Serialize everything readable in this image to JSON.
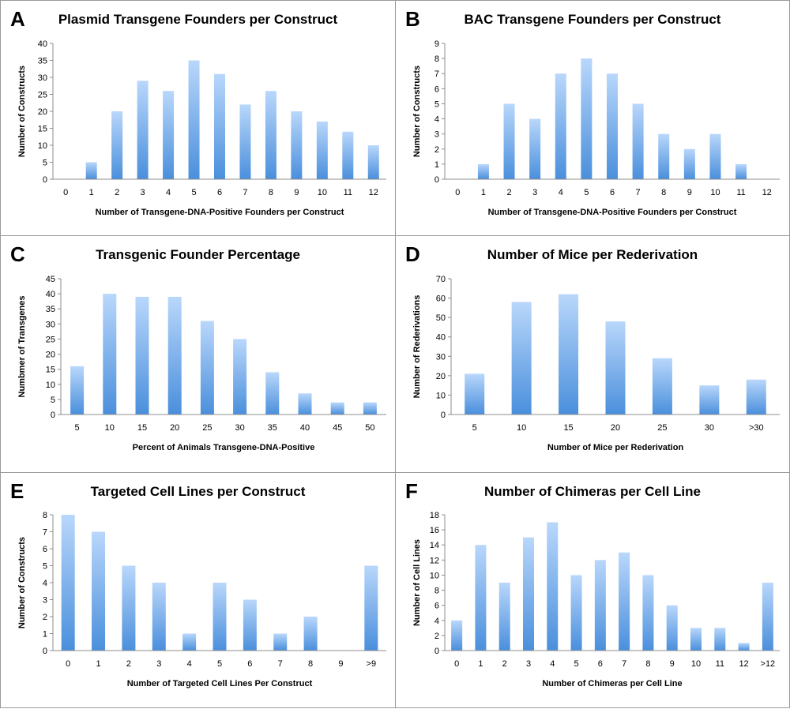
{
  "chart_data": [
    {
      "type": "bar",
      "letter": "A",
      "title": "Plasmid Transgene Founders per Construct",
      "xlabel": "Number of Transgene-DNA-Positive Founders per Construct",
      "ylabel": "Number of Constructs",
      "categories": [
        "0",
        "1",
        "2",
        "3",
        "4",
        "5",
        "6",
        "7",
        "8",
        "9",
        "10",
        "11",
        "12"
      ],
      "values": [
        0,
        5,
        20,
        29,
        26,
        35,
        31,
        22,
        26,
        20,
        17,
        14,
        10
      ],
      "ylim": [
        0,
        40
      ],
      "yticks": [
        0,
        5,
        10,
        15,
        20,
        25,
        30,
        35,
        40
      ],
      "grid": false,
      "legend": "none"
    },
    {
      "type": "bar",
      "letter": "B",
      "title": "BAC Transgene Founders per Construct",
      "xlabel": "Number of Transgene-DNA-Positive Founders per Construct",
      "ylabel": "Number of Constructs",
      "categories": [
        "0",
        "1",
        "2",
        "3",
        "4",
        "5",
        "6",
        "7",
        "8",
        "9",
        "10",
        "11",
        "12"
      ],
      "values": [
        0,
        1,
        5,
        4,
        7,
        8,
        7,
        5,
        3,
        2,
        3,
        1,
        0
      ],
      "ylim": [
        0,
        9
      ],
      "yticks": [
        0,
        1,
        2,
        3,
        4,
        5,
        6,
        7,
        8,
        9
      ],
      "grid": false,
      "legend": "none"
    },
    {
      "type": "bar",
      "letter": "C",
      "title": "Transgenic Founder Percentage",
      "xlabel": "Percent of Animals Transgene-DNA-Positive",
      "ylabel": "Numbmer of Transgenes",
      "categories": [
        "5",
        "10",
        "15",
        "20",
        "25",
        "30",
        "35",
        "40",
        "45",
        "50"
      ],
      "values": [
        16,
        40,
        39,
        39,
        31,
        25,
        14,
        7,
        4,
        4
      ],
      "ylim": [
        0,
        45
      ],
      "yticks": [
        0,
        5,
        10,
        15,
        20,
        25,
        30,
        35,
        40,
        45
      ],
      "grid": false,
      "legend": "none"
    },
    {
      "type": "bar",
      "letter": "D",
      "title": "Number of Mice per Rederivation",
      "xlabel": "Number of Mice per Rederivation",
      "ylabel": "Number of Rederivations",
      "categories": [
        "5",
        "10",
        "15",
        "20",
        "25",
        "30",
        ">30"
      ],
      "values": [
        21,
        58,
        62,
        48,
        29,
        15,
        18
      ],
      "ylim": [
        0,
        70
      ],
      "yticks": [
        0,
        10,
        20,
        30,
        40,
        50,
        60,
        70
      ],
      "grid": false,
      "legend": "none"
    },
    {
      "type": "bar",
      "letter": "E",
      "title": "Targeted Cell Lines per Construct",
      "xlabel": "Number of Targeted Cell Lines Per Construct",
      "ylabel": "Number of Constructs",
      "categories": [
        "0",
        "1",
        "2",
        "3",
        "4",
        "5",
        "6",
        "7",
        "8",
        "9",
        ">9"
      ],
      "values": [
        8,
        7,
        5,
        4,
        1,
        4,
        3,
        1,
        2,
        0,
        5
      ],
      "ylim": [
        0,
        8
      ],
      "yticks": [
        0,
        1,
        2,
        3,
        4,
        5,
        6,
        7,
        8
      ],
      "grid": false,
      "legend": "none"
    },
    {
      "type": "bar",
      "letter": "F",
      "title": "Number of Chimeras per Cell Line",
      "xlabel": "Number of Chimeras per Cell Line",
      "ylabel": "Number of Cell Lines",
      "categories": [
        "0",
        "1",
        "2",
        "3",
        "4",
        "5",
        "6",
        "7",
        "8",
        "9",
        "10",
        "11",
        "12",
        ">12"
      ],
      "values": [
        4,
        14,
        9,
        15,
        17,
        10,
        12,
        13,
        10,
        6,
        3,
        3,
        1,
        9
      ],
      "ylim": [
        0,
        18
      ],
      "yticks": [
        0,
        2,
        4,
        6,
        8,
        10,
        12,
        14,
        16,
        18
      ],
      "grid": false,
      "legend": "none"
    }
  ],
  "colors": {
    "bar_top": "#b9d7fb",
    "bar_bottom": "#4a8fdc",
    "axis": "#8c8c8c",
    "panel_border": "#9a9a9a"
  }
}
